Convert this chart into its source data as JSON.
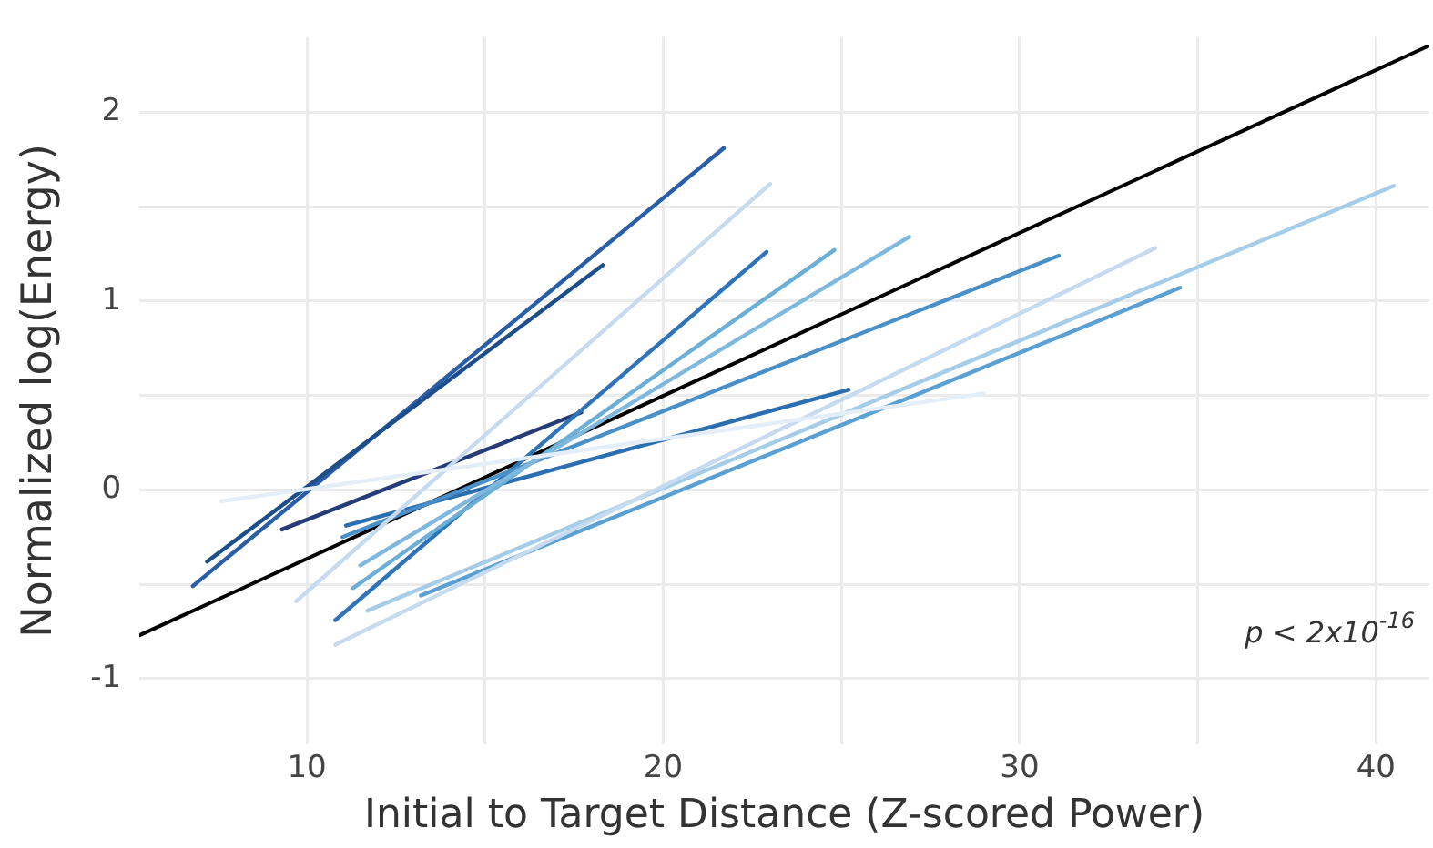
{
  "chart_data": {
    "type": "line",
    "xlabel": "Initial to Target Distance (Z-scored Power)",
    "ylabel": "Normalized log(Energy)",
    "xlim": [
      5.3,
      41.5
    ],
    "ylim": [
      -1.35,
      2.4
    ],
    "xticks": [
      10,
      {
        "value": 15,
        "label": null
      },
      20,
      {
        "value": 25,
        "label": null
      },
      30,
      {
        "value": 35,
        "label": null
      },
      40
    ],
    "yticks": [
      -1,
      {
        "value": -0.5,
        "label": null
      },
      0,
      {
        "value": 0.5,
        "label": null
      },
      1,
      {
        "value": 1.5,
        "label": null
      },
      2
    ],
    "grid": true,
    "legend": false,
    "marker": "none",
    "line_style": "solid",
    "annotations": [
      "p < 2x10$^{-16}$"
    ],
    "series": [
      {
        "color": "#e3eef8",
        "x": [
          7.6,
          29.0
        ],
        "values": [
          -0.06,
          0.51
        ]
      },
      {
        "color": "#c6dbef",
        "x": [
          10.8,
          33.8
        ],
        "values": [
          -0.82,
          1.28
        ]
      },
      {
        "color": "#c6dbef",
        "x": [
          9.7,
          23.0
        ],
        "values": [
          -0.59,
          1.62
        ]
      },
      {
        "color": "#a6cde8",
        "x": [
          11.7,
          40.5
        ],
        "values": [
          -0.64,
          1.61
        ]
      },
      {
        "color": "#7fb8de",
        "x": [
          11.5,
          26.9
        ],
        "values": [
          -0.4,
          1.34
        ]
      },
      {
        "color": "#6baed6",
        "x": [
          11.3,
          24.8
        ],
        "values": [
          -0.52,
          1.27
        ]
      },
      {
        "color": "#5aa0d3",
        "x": [
          13.2,
          34.5
        ],
        "values": [
          -0.56,
          1.07
        ]
      },
      {
        "color": "#4a90c8",
        "x": [
          11.0,
          31.1
        ],
        "values": [
          -0.25,
          1.24
        ]
      },
      {
        "color": "#2c6fb0",
        "x": [
          11.1,
          25.2
        ],
        "values": [
          -0.19,
          0.53
        ]
      },
      {
        "color": "#2f74b8",
        "x": [
          10.8,
          22.9
        ],
        "values": [
          -0.69,
          1.26
        ]
      },
      {
        "color": "#1d4e89",
        "x": [
          7.2,
          18.3
        ],
        "values": [
          -0.38,
          1.19
        ]
      },
      {
        "color": "#2a5ea8",
        "x": [
          6.8,
          21.7
        ],
        "values": [
          -0.51,
          1.81
        ]
      },
      {
        "color": "#253c78",
        "x": [
          9.3,
          17.7
        ],
        "values": [
          -0.21,
          0.41
        ]
      },
      {
        "color": "#000000",
        "x": [
          5.31,
          41.46
        ],
        "values": [
          -0.77,
          2.35
        ]
      }
    ]
  }
}
